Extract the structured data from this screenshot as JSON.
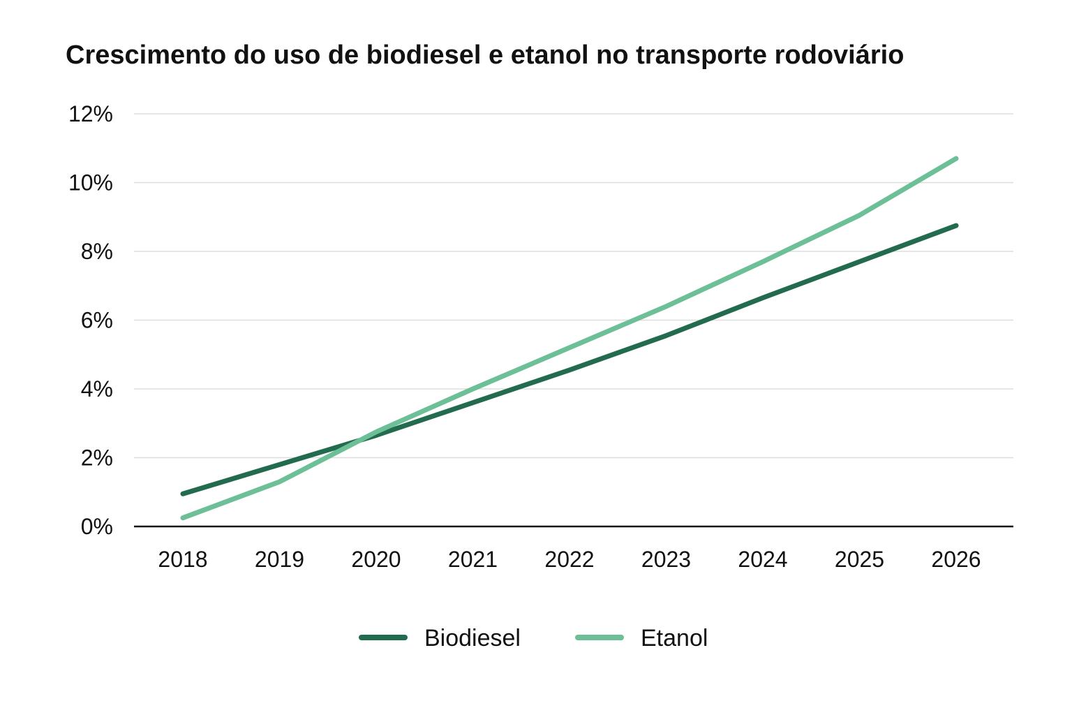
{
  "chart_data": {
    "type": "line",
    "title": "Crescimento do uso de biodiesel e etanol no transporte rodoviário",
    "x": [
      "2018",
      "2019",
      "2020",
      "2021",
      "2022",
      "2023",
      "2024",
      "2025",
      "2026"
    ],
    "yticks": [
      "0%",
      "2%",
      "4%",
      "6%",
      "8%",
      "10%",
      "12%"
    ],
    "ylim": [
      0,
      12
    ],
    "ytick_values": [
      0,
      2,
      4,
      6,
      8,
      10,
      12
    ],
    "grid": true,
    "legend_position": "bottom",
    "series": [
      {
        "name": "Biodiesel",
        "color": "#236b4f",
        "values": [
          0.95,
          1.8,
          2.65,
          3.6,
          4.55,
          5.55,
          6.65,
          7.7,
          8.75
        ]
      },
      {
        "name": "Etanol",
        "color": "#6cbf96",
        "values": [
          0.25,
          1.3,
          2.75,
          4.0,
          5.2,
          6.4,
          7.7,
          9.05,
          10.7
        ]
      }
    ]
  }
}
